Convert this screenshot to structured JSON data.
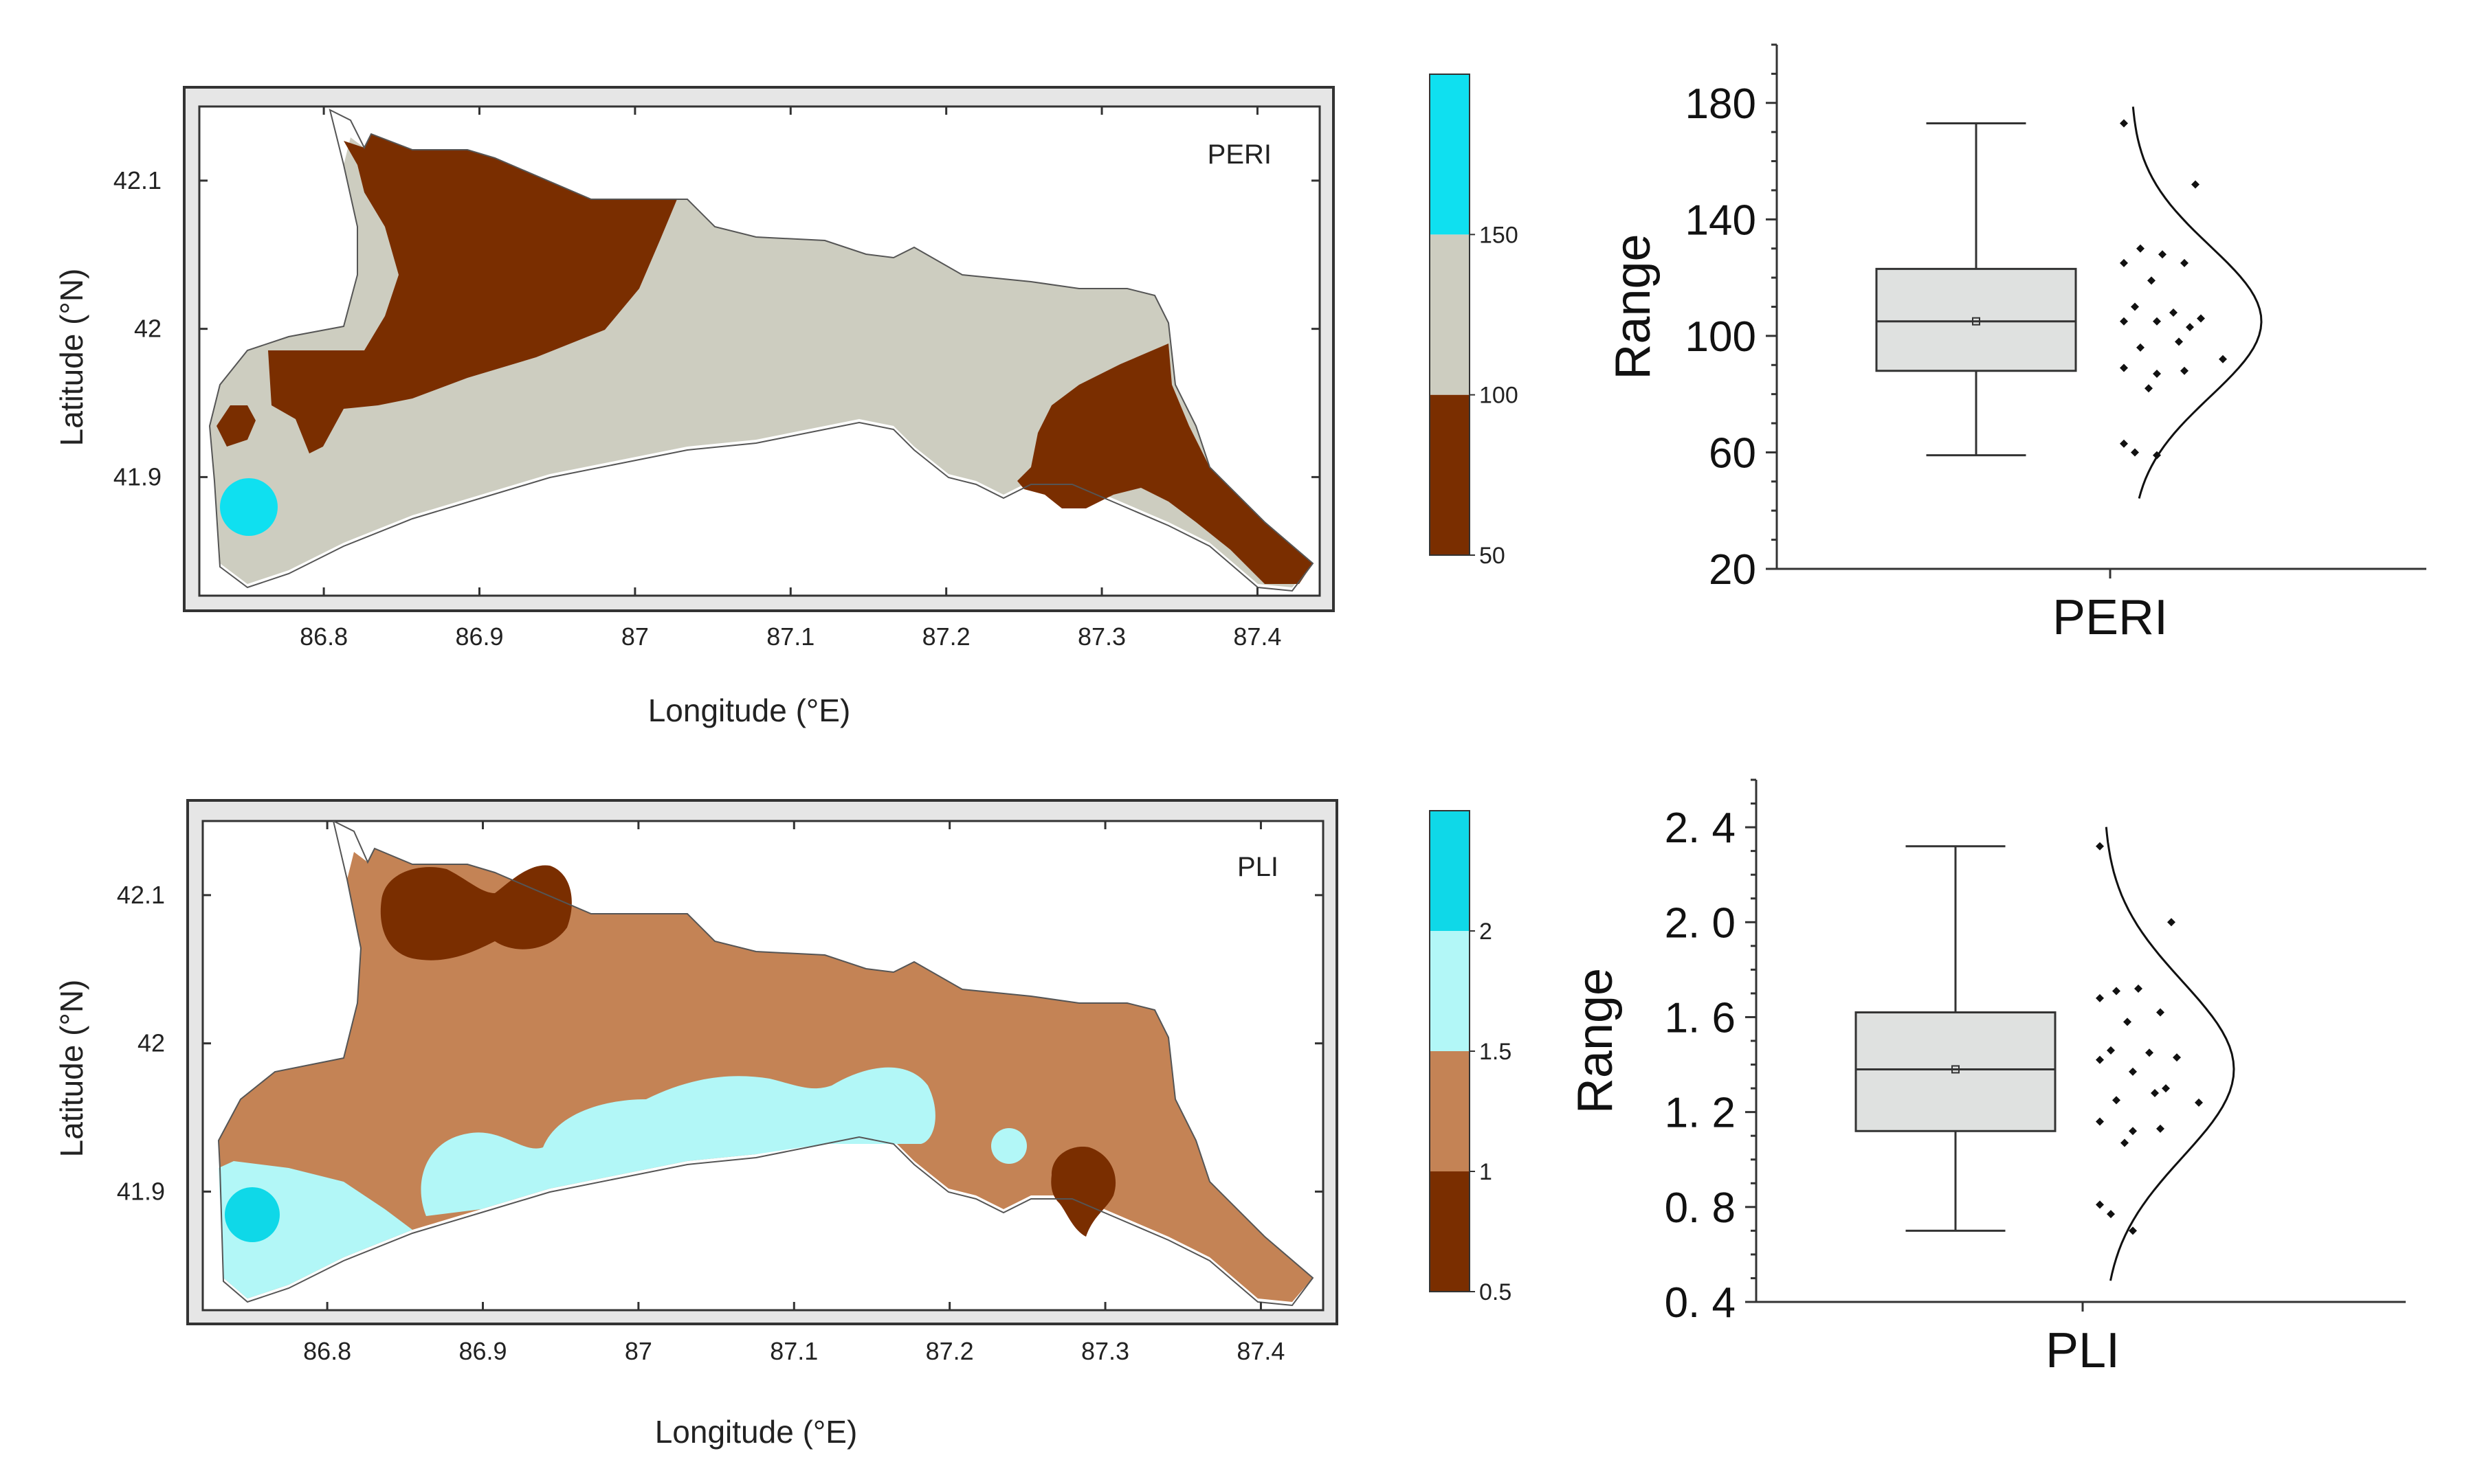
{
  "chart_data": [
    {
      "type": "contour-map",
      "title": "PERI",
      "xlabel": "Longitude (°E)",
      "ylabel": "Latitude (°N)",
      "x_ticks": [
        "86.8",
        "86.9",
        "87",
        "87.1",
        "87.2",
        "87.3",
        "87.4"
      ],
      "x_values": [
        86.8,
        86.9,
        87.0,
        87.1,
        87.2,
        87.3,
        87.4
      ],
      "xlim": [
        86.72,
        87.44
      ],
      "y_ticks": [
        "41.9",
        "42",
        "42.1"
      ],
      "y_values": [
        41.9,
        42.0,
        42.1
      ],
      "ylim": [
        41.82,
        42.15
      ],
      "colorbar": {
        "levels": [
          50,
          100,
          150,
          200
        ],
        "labels": [
          "50",
          "100",
          "150"
        ],
        "colors": [
          "#7a2e00",
          "#cdcdc0",
          "#0fe0f0"
        ]
      }
    },
    {
      "type": "box-with-distribution",
      "category": "PERI",
      "ylabel": "Range",
      "y_ticks": [
        "20",
        "60",
        "100",
        "140",
        "180"
      ],
      "y_values": [
        20,
        60,
        100,
        140,
        180
      ],
      "ylim": [
        20,
        200
      ],
      "box": {
        "min": 59,
        "q1": 88,
        "median": 105,
        "mean": 105,
        "q3": 123,
        "max": 173
      },
      "points": [
        173,
        152,
        130,
        128,
        125,
        125,
        119,
        110,
        108,
        106,
        105,
        105,
        103,
        98,
        96,
        92,
        89,
        88,
        87,
        82,
        63,
        60,
        59
      ],
      "box_color": "#dfe1e0"
    },
    {
      "type": "contour-map",
      "title": "PLI",
      "xlabel": "Longitude (°E)",
      "ylabel": "Latitude (°N)",
      "x_ticks": [
        "86.8",
        "86.9",
        "87",
        "87.1",
        "87.2",
        "87.3",
        "87.4"
      ],
      "x_values": [
        86.8,
        86.9,
        87.0,
        87.1,
        87.2,
        87.3,
        87.4
      ],
      "xlim": [
        86.72,
        87.44
      ],
      "y_ticks": [
        "41.9",
        "42",
        "42.1"
      ],
      "y_values": [
        41.9,
        42.0,
        42.1
      ],
      "ylim": [
        41.82,
        42.15
      ],
      "colorbar": {
        "levels": [
          0.5,
          1,
          1.5,
          2,
          2.5
        ],
        "labels": [
          "0.5",
          "1",
          "1.5",
          "2"
        ],
        "colors": [
          "#7a2e00",
          "#c48355",
          "#b2f7f7",
          "#0fd8e8"
        ]
      }
    },
    {
      "type": "box-with-distribution",
      "category": "PLI",
      "ylabel": "Range",
      "y_ticks": [
        "0. 4",
        "0. 8",
        "1. 2",
        "1. 6",
        "2. 0",
        "2. 4"
      ],
      "y_values": [
        0.4,
        0.8,
        1.2,
        1.6,
        2.0,
        2.4
      ],
      "ylim": [
        0.4,
        2.6
      ],
      "box": {
        "min": 0.7,
        "q1": 1.12,
        "median": 1.38,
        "mean": 1.38,
        "q3": 1.62,
        "max": 2.32
      },
      "points": [
        2.32,
        2.0,
        1.71,
        1.72,
        1.68,
        1.62,
        1.58,
        1.46,
        1.45,
        1.43,
        1.42,
        1.37,
        1.3,
        1.28,
        1.25,
        1.24,
        1.16,
        1.13,
        1.12,
        1.07,
        0.81,
        0.77,
        0.7
      ],
      "box_color": "#dfe1e0"
    }
  ]
}
